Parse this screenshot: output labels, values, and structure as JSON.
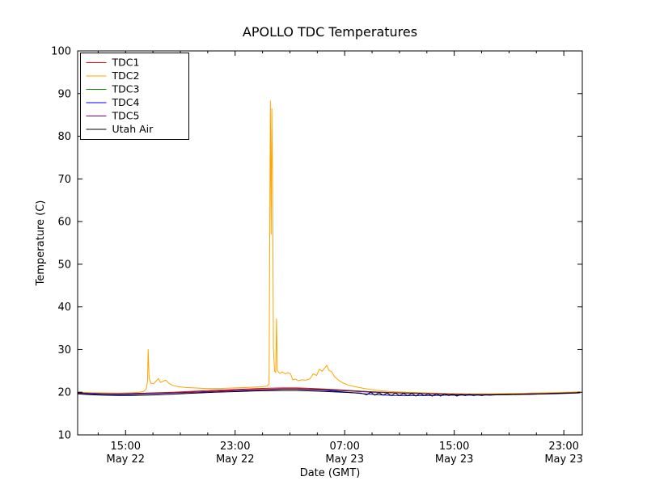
{
  "chart_data": {
    "type": "line",
    "title": "APOLLO TDC Temperatures",
    "xlabel": "Date (GMT)",
    "ylabel": "Temperature (C)",
    "ylim": [
      10,
      100
    ],
    "xlim_hours": [
      11.5,
      48.35
    ],
    "grid": false,
    "legend_position": "upper left",
    "background_color": "#ffffff",
    "axis_color": "#000000",
    "yticks": [
      10,
      20,
      30,
      40,
      50,
      60,
      70,
      80,
      90,
      100
    ],
    "xticks": [
      {
        "hours": 15,
        "line1": "15:00",
        "line2": "May 22"
      },
      {
        "hours": 23,
        "line1": "23:00",
        "line2": "May 22"
      },
      {
        "hours": 31,
        "line1": "07:00",
        "line2": "May 23"
      },
      {
        "hours": 39,
        "line1": "15:00",
        "line2": "May 23"
      },
      {
        "hours": 47,
        "line1": "23:00",
        "line2": "May 23"
      }
    ],
    "xticks_minor": [
      13,
      17,
      19,
      21,
      25,
      27,
      29,
      33,
      35,
      37,
      41,
      43,
      45
    ],
    "series": [
      {
        "name": "TDC1",
        "color": "#ff0000",
        "points": [
          [
            11.5,
            19.9
          ],
          [
            12.5,
            19.8
          ],
          [
            13.5,
            19.7
          ],
          [
            14.5,
            19.7
          ],
          [
            15.5,
            19.7
          ],
          [
            16.5,
            19.8
          ],
          [
            17.5,
            19.9
          ],
          [
            18.5,
            20.0
          ],
          [
            19.5,
            20.15
          ],
          [
            20.5,
            20.3
          ],
          [
            21.5,
            20.45
          ],
          [
            22.5,
            20.6
          ],
          [
            23.5,
            20.7
          ],
          [
            24.5,
            20.85
          ],
          [
            25.5,
            20.95
          ],
          [
            26.5,
            21.0
          ],
          [
            27.5,
            21.0
          ],
          [
            28.5,
            20.9
          ],
          [
            29.5,
            20.75
          ],
          [
            30.5,
            20.6
          ],
          [
            31.5,
            20.4
          ],
          [
            32.5,
            20.2
          ],
          [
            33.5,
            20.05
          ],
          [
            34.5,
            19.9
          ],
          [
            35.5,
            19.8
          ],
          [
            36.5,
            19.7
          ],
          [
            37.5,
            19.6
          ],
          [
            38.5,
            19.55
          ],
          [
            39.5,
            19.5
          ],
          [
            40.5,
            19.45
          ],
          [
            41.5,
            19.45
          ],
          [
            42.5,
            19.5
          ],
          [
            43.5,
            19.55
          ],
          [
            44.5,
            19.6
          ],
          [
            45.5,
            19.7
          ],
          [
            46.5,
            19.8
          ],
          [
            47.5,
            19.9
          ],
          [
            48.2,
            19.95
          ]
        ]
      },
      {
        "name": "TDC2",
        "color": "#ffa500",
        "points": [
          [
            11.5,
            20.0
          ],
          [
            12.5,
            19.9
          ],
          [
            13.5,
            19.85
          ],
          [
            14.5,
            19.8
          ],
          [
            15.5,
            19.9
          ],
          [
            16.0,
            20.0
          ],
          [
            16.3,
            20.2
          ],
          [
            16.5,
            20.7
          ],
          [
            16.6,
            22.5
          ],
          [
            16.65,
            30.0
          ],
          [
            16.72,
            23.3
          ],
          [
            16.85,
            22.1
          ],
          [
            17.05,
            22.0
          ],
          [
            17.25,
            22.7
          ],
          [
            17.4,
            23.2
          ],
          [
            17.55,
            22.3
          ],
          [
            17.75,
            22.6
          ],
          [
            17.95,
            22.8
          ],
          [
            18.15,
            22.1
          ],
          [
            18.45,
            21.6
          ],
          [
            18.85,
            21.3
          ],
          [
            19.4,
            21.1
          ],
          [
            20.0,
            21.0
          ],
          [
            21.0,
            20.85
          ],
          [
            22.0,
            20.9
          ],
          [
            23.0,
            21.0
          ],
          [
            24.0,
            21.15
          ],
          [
            25.0,
            21.3
          ],
          [
            25.35,
            21.45
          ],
          [
            25.48,
            22.0
          ],
          [
            25.53,
            60.0
          ],
          [
            25.57,
            88.3
          ],
          [
            25.63,
            57.0
          ],
          [
            25.68,
            86.5
          ],
          [
            25.73,
            70.0
          ],
          [
            25.8,
            30.0
          ],
          [
            25.88,
            25.0
          ],
          [
            25.96,
            24.6
          ],
          [
            26.02,
            37.2
          ],
          [
            26.08,
            25.1
          ],
          [
            26.25,
            24.4
          ],
          [
            26.45,
            24.8
          ],
          [
            26.65,
            24.3
          ],
          [
            26.85,
            24.6
          ],
          [
            27.05,
            24.3
          ],
          [
            27.2,
            22.9
          ],
          [
            27.4,
            23.1
          ],
          [
            27.6,
            22.7
          ],
          [
            27.85,
            22.9
          ],
          [
            28.15,
            22.8
          ],
          [
            28.45,
            23.1
          ],
          [
            28.7,
            24.3
          ],
          [
            28.95,
            23.9
          ],
          [
            29.15,
            25.4
          ],
          [
            29.35,
            24.9
          ],
          [
            29.55,
            25.7
          ],
          [
            29.7,
            26.3
          ],
          [
            29.85,
            25.1
          ],
          [
            30.05,
            24.8
          ],
          [
            30.25,
            23.7
          ],
          [
            30.55,
            22.8
          ],
          [
            30.85,
            22.2
          ],
          [
            31.25,
            21.7
          ],
          [
            31.75,
            21.3
          ],
          [
            32.4,
            20.9
          ],
          [
            33.2,
            20.5
          ],
          [
            34.2,
            20.2
          ],
          [
            35.5,
            20.0
          ],
          [
            37.0,
            19.85
          ],
          [
            38.5,
            19.7
          ],
          [
            40.0,
            19.6
          ],
          [
            41.5,
            19.6
          ],
          [
            43.0,
            19.7
          ],
          [
            44.5,
            19.8
          ],
          [
            46.0,
            19.9
          ],
          [
            47.2,
            20.0
          ],
          [
            48.2,
            20.1
          ]
        ]
      },
      {
        "name": "TDC3",
        "color": "#008000",
        "points": [
          [
            11.5,
            19.85
          ],
          [
            13.0,
            19.7
          ],
          [
            14.5,
            19.65
          ],
          [
            16.0,
            19.7
          ],
          [
            17.5,
            19.8
          ],
          [
            19.0,
            19.95
          ],
          [
            20.5,
            20.1
          ],
          [
            22.0,
            20.3
          ],
          [
            23.5,
            20.5
          ],
          [
            25.0,
            20.65
          ],
          [
            26.5,
            20.8
          ],
          [
            27.5,
            20.8
          ],
          [
            28.5,
            20.75
          ],
          [
            30.0,
            20.6
          ],
          [
            31.5,
            20.35
          ],
          [
            33.0,
            20.1
          ],
          [
            34.5,
            19.9
          ],
          [
            36.0,
            19.8
          ],
          [
            37.5,
            19.65
          ],
          [
            39.0,
            19.55
          ],
          [
            40.5,
            19.5
          ],
          [
            42.0,
            19.5
          ],
          [
            43.5,
            19.55
          ],
          [
            45.0,
            19.6
          ],
          [
            46.5,
            19.7
          ],
          [
            47.5,
            19.8
          ],
          [
            48.2,
            19.85
          ]
        ]
      },
      {
        "name": "TDC4",
        "color": "#0000ff",
        "points": [
          [
            11.5,
            19.7
          ],
          [
            12.5,
            19.5
          ],
          [
            13.5,
            19.4
          ],
          [
            14.5,
            19.4
          ],
          [
            15.5,
            19.5
          ],
          [
            16.5,
            19.6
          ],
          [
            17.5,
            19.7
          ],
          [
            18.75,
            19.85
          ],
          [
            20.0,
            20.0
          ],
          [
            21.25,
            20.2
          ],
          [
            22.5,
            20.35
          ],
          [
            23.75,
            20.5
          ],
          [
            25.0,
            20.6
          ],
          [
            26.25,
            20.7
          ],
          [
            27.5,
            20.7
          ],
          [
            28.5,
            20.6
          ],
          [
            29.5,
            20.45
          ],
          [
            30.5,
            20.2
          ],
          [
            31.5,
            19.9
          ],
          [
            32.5,
            19.6
          ],
          [
            33.5,
            19.4
          ],
          [
            34.5,
            19.25
          ],
          [
            35.5,
            19.2
          ],
          [
            36.5,
            19.2
          ],
          [
            37.5,
            19.25
          ],
          [
            38.5,
            19.3
          ],
          [
            39.5,
            19.3
          ],
          [
            40.5,
            19.3
          ],
          [
            41.5,
            19.35
          ],
          [
            42.5,
            19.4
          ],
          [
            43.5,
            19.5
          ],
          [
            44.5,
            19.6
          ],
          [
            45.5,
            19.65
          ],
          [
            46.5,
            19.75
          ],
          [
            47.5,
            19.85
          ],
          [
            48.2,
            19.9
          ]
        ]
      },
      {
        "name": "TDC5",
        "color": "#800080",
        "points": [
          [
            11.5,
            19.8
          ],
          [
            13.0,
            19.65
          ],
          [
            14.5,
            19.6
          ],
          [
            16.0,
            19.65
          ],
          [
            17.5,
            19.75
          ],
          [
            19.0,
            19.9
          ],
          [
            20.5,
            20.05
          ],
          [
            22.0,
            20.25
          ],
          [
            23.5,
            20.4
          ],
          [
            25.0,
            20.55
          ],
          [
            26.5,
            20.7
          ],
          [
            27.5,
            20.7
          ],
          [
            28.5,
            20.65
          ],
          [
            30.0,
            20.5
          ],
          [
            31.5,
            20.25
          ],
          [
            33.0,
            20.0
          ],
          [
            34.5,
            19.85
          ],
          [
            36.0,
            19.7
          ],
          [
            37.5,
            19.6
          ],
          [
            39.0,
            19.5
          ],
          [
            40.5,
            19.45
          ],
          [
            42.0,
            19.45
          ],
          [
            43.5,
            19.5
          ],
          [
            45.0,
            19.55
          ],
          [
            46.5,
            19.65
          ],
          [
            47.5,
            19.75
          ],
          [
            48.2,
            19.85
          ]
        ]
      },
      {
        "name": "Utah Air",
        "color": "#000000",
        "points": [
          [
            11.5,
            19.6
          ],
          [
            12.5,
            19.4
          ],
          [
            13.5,
            19.3
          ],
          [
            14.5,
            19.25
          ],
          [
            15.5,
            19.25
          ],
          [
            16.5,
            19.3
          ],
          [
            17.5,
            19.4
          ],
          [
            18.5,
            19.55
          ],
          [
            19.5,
            19.7
          ],
          [
            20.5,
            19.85
          ],
          [
            21.5,
            20.0
          ],
          [
            22.5,
            20.1
          ],
          [
            23.5,
            20.2
          ],
          [
            24.5,
            20.3
          ],
          [
            25.5,
            20.35
          ],
          [
            26.5,
            20.4
          ],
          [
            27.5,
            20.4
          ],
          [
            28.5,
            20.3
          ],
          [
            29.5,
            20.2
          ],
          [
            30.5,
            20.05
          ],
          [
            31.5,
            19.9
          ],
          [
            32.2,
            19.8
          ],
          [
            32.6,
            19.4
          ],
          [
            32.9,
            20.0
          ],
          [
            33.2,
            19.3
          ],
          [
            33.5,
            19.9
          ],
          [
            33.8,
            19.3
          ],
          [
            34.1,
            19.8
          ],
          [
            34.4,
            19.2
          ],
          [
            34.7,
            19.8
          ],
          [
            35.0,
            19.2
          ],
          [
            35.3,
            19.7
          ],
          [
            35.6,
            19.2
          ],
          [
            35.9,
            19.7
          ],
          [
            36.2,
            19.1
          ],
          [
            36.5,
            19.7
          ],
          [
            36.8,
            19.2
          ],
          [
            37.1,
            19.6
          ],
          [
            37.4,
            19.1
          ],
          [
            37.7,
            19.6
          ],
          [
            38.0,
            19.1
          ],
          [
            38.3,
            19.6
          ],
          [
            38.6,
            19.2
          ],
          [
            38.9,
            19.5
          ],
          [
            39.2,
            19.1
          ],
          [
            39.5,
            19.5
          ],
          [
            39.8,
            19.2
          ],
          [
            40.1,
            19.5
          ],
          [
            40.4,
            19.2
          ],
          [
            40.7,
            19.4
          ],
          [
            41.0,
            19.2
          ],
          [
            41.3,
            19.4
          ],
          [
            41.6,
            19.3
          ],
          [
            42.0,
            19.4
          ],
          [
            42.8,
            19.4
          ],
          [
            43.6,
            19.45
          ],
          [
            44.5,
            19.5
          ],
          [
            45.5,
            19.6
          ],
          [
            46.5,
            19.7
          ],
          [
            47.5,
            19.8
          ],
          [
            48.2,
            19.9
          ]
        ]
      }
    ]
  }
}
